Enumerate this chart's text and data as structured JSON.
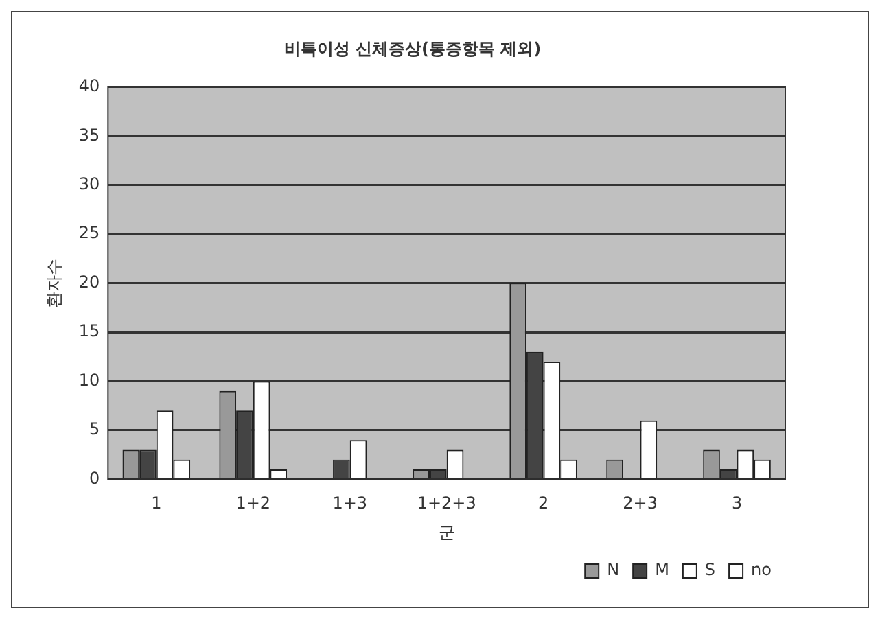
{
  "chart_data": {
    "type": "bar",
    "title": "비특이성 신체증상(통증항목 제외)",
    "xlabel": "군",
    "ylabel": "환자수",
    "categories": [
      "1",
      "1+2",
      "1+3",
      "1+2+3",
      "2",
      "2+3",
      "3"
    ],
    "series": [
      {
        "name": "N",
        "color": "#999999",
        "values": [
          3,
          9,
          0,
          1,
          20,
          2,
          3
        ]
      },
      {
        "name": "M",
        "color": "#444444",
        "values": [
          3,
          7,
          2,
          1,
          13,
          0,
          1
        ]
      },
      {
        "name": "S",
        "color": "#ffffff",
        "values": [
          7,
          10,
          4,
          3,
          12,
          6,
          3
        ]
      },
      {
        "name": "no",
        "color": "#ffffff",
        "values": [
          2,
          1,
          0,
          0,
          2,
          0,
          2
        ]
      }
    ],
    "ylim": [
      0,
      40
    ],
    "yticks": [
      0,
      5,
      10,
      15,
      20,
      25,
      30,
      35,
      40
    ],
    "grid": "y",
    "legend": "bottom right"
  }
}
